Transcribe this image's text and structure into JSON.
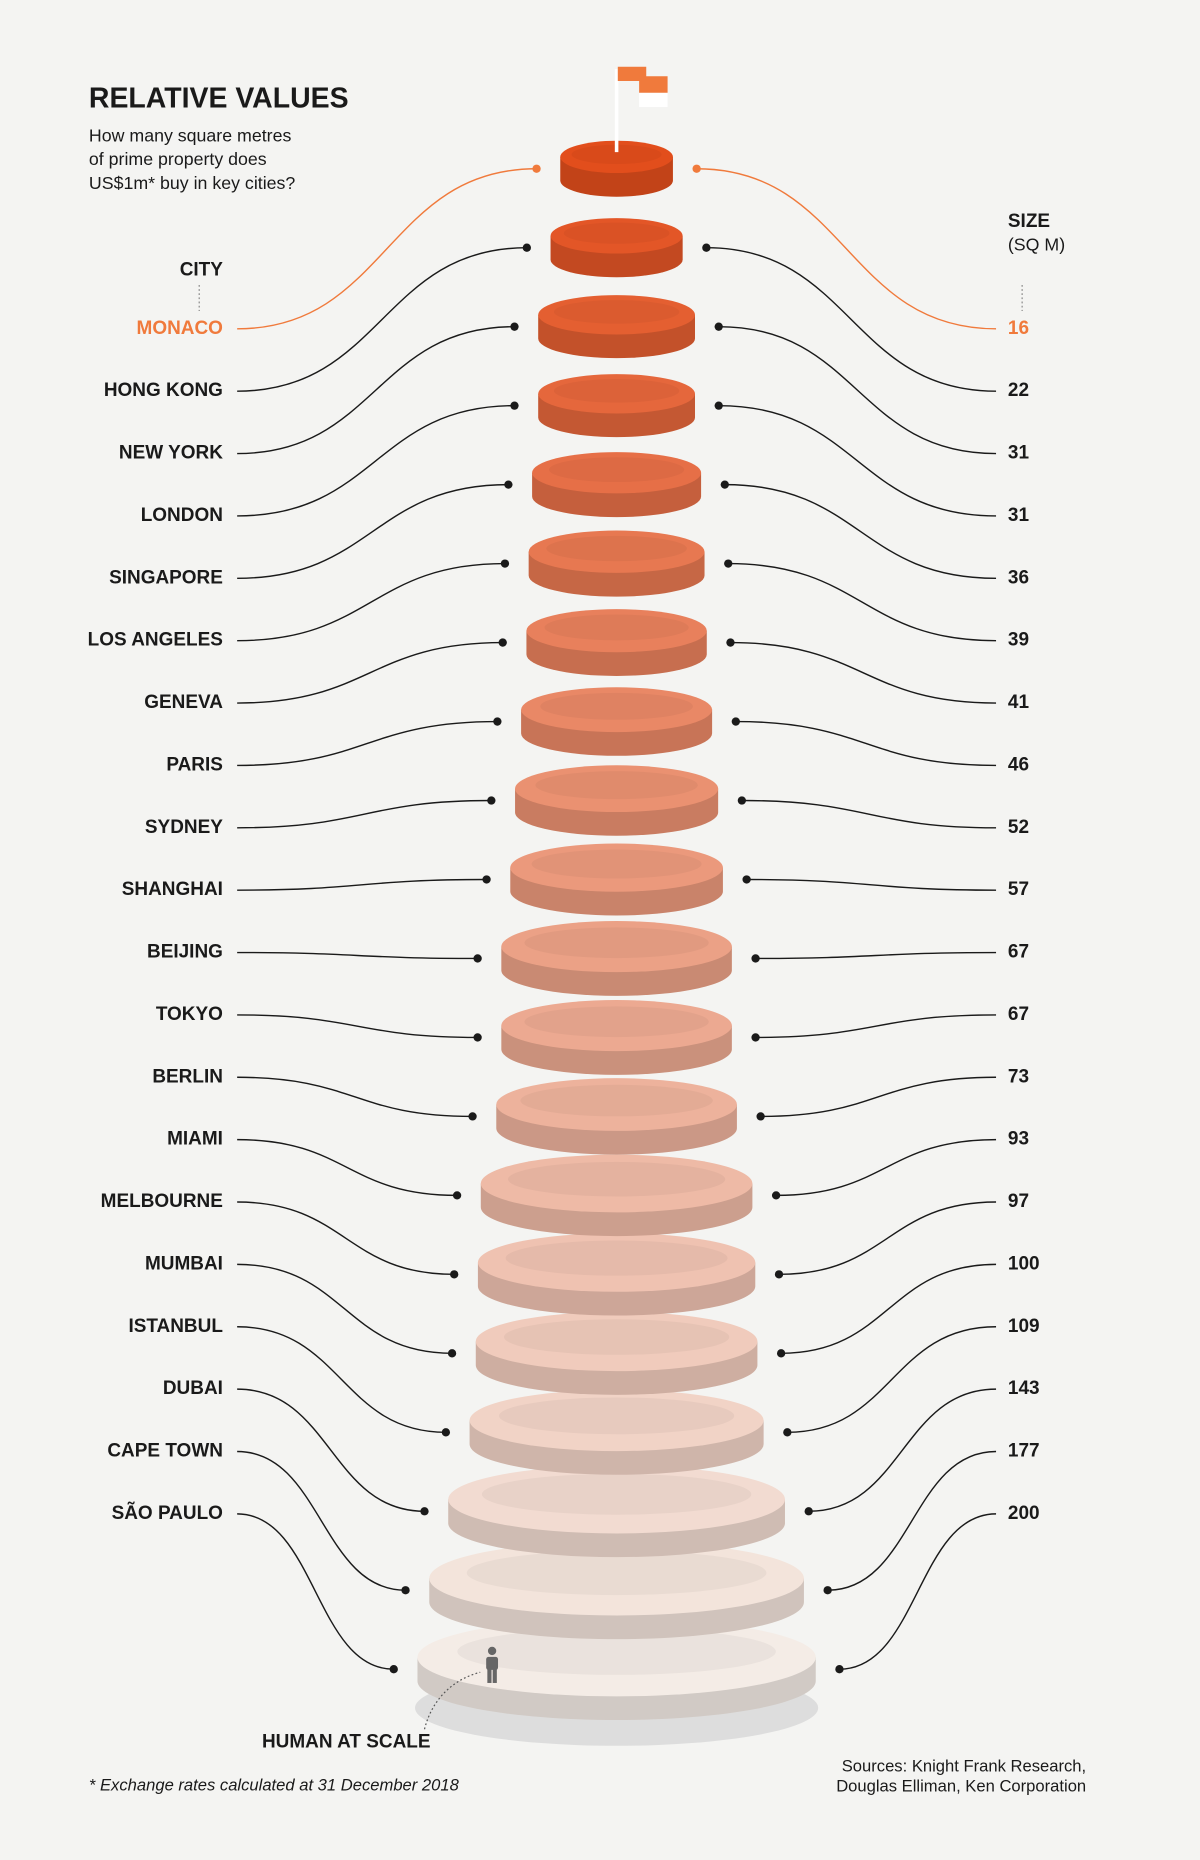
{
  "chart_data": {
    "type": "stacked_discs",
    "title": "RELATIVE VALUES",
    "subtitle": [
      "How many square metres",
      "of prime property does",
      "US$1m* buy in key cities?"
    ],
    "category_header": "CITY",
    "value_header": [
      "SIZE",
      "(SQ M)"
    ],
    "categories": [
      "MONACO",
      "HONG KONG",
      "NEW YORK",
      "LONDON",
      "SINGAPORE",
      "LOS ANGELES",
      "GENEVA",
      "PARIS",
      "SYDNEY",
      "SHANGHAI",
      "BEIJING",
      "TOKYO",
      "BERLIN",
      "MIAMI",
      "MELBOURNE",
      "MUMBAI",
      "ISTANBUL",
      "DUBAI",
      "CAPE TOWN",
      "SÃO PAULO"
    ],
    "values": [
      16,
      22,
      31,
      31,
      36,
      39,
      41,
      46,
      52,
      57,
      67,
      67,
      73,
      93,
      97,
      100,
      109,
      143,
      177,
      200
    ],
    "colors": [
      "#e24e1c",
      "#e35627",
      "#e45f31",
      "#e5673c",
      "#e66f47",
      "#e77851",
      "#e8805c",
      "#e98866",
      "#ea9171",
      "#eb997c",
      "#eba186",
      "#eca991",
      "#edb29c",
      "#eebaa6",
      "#efc2b1",
      "#f0cbbc",
      "#f1d3c6",
      "#f2dbd1",
      "#f3e4db",
      "#f4ece6"
    ],
    "highlight_color": "#f07a3c",
    "annotation": "HUMAN AT SCALE",
    "footnote": "* Exchange rates calculated at 31 December 2018",
    "sources": [
      "Sources: Knight Frank Research,",
      "Douglas Elliman, Ken Corporation"
    ]
  }
}
